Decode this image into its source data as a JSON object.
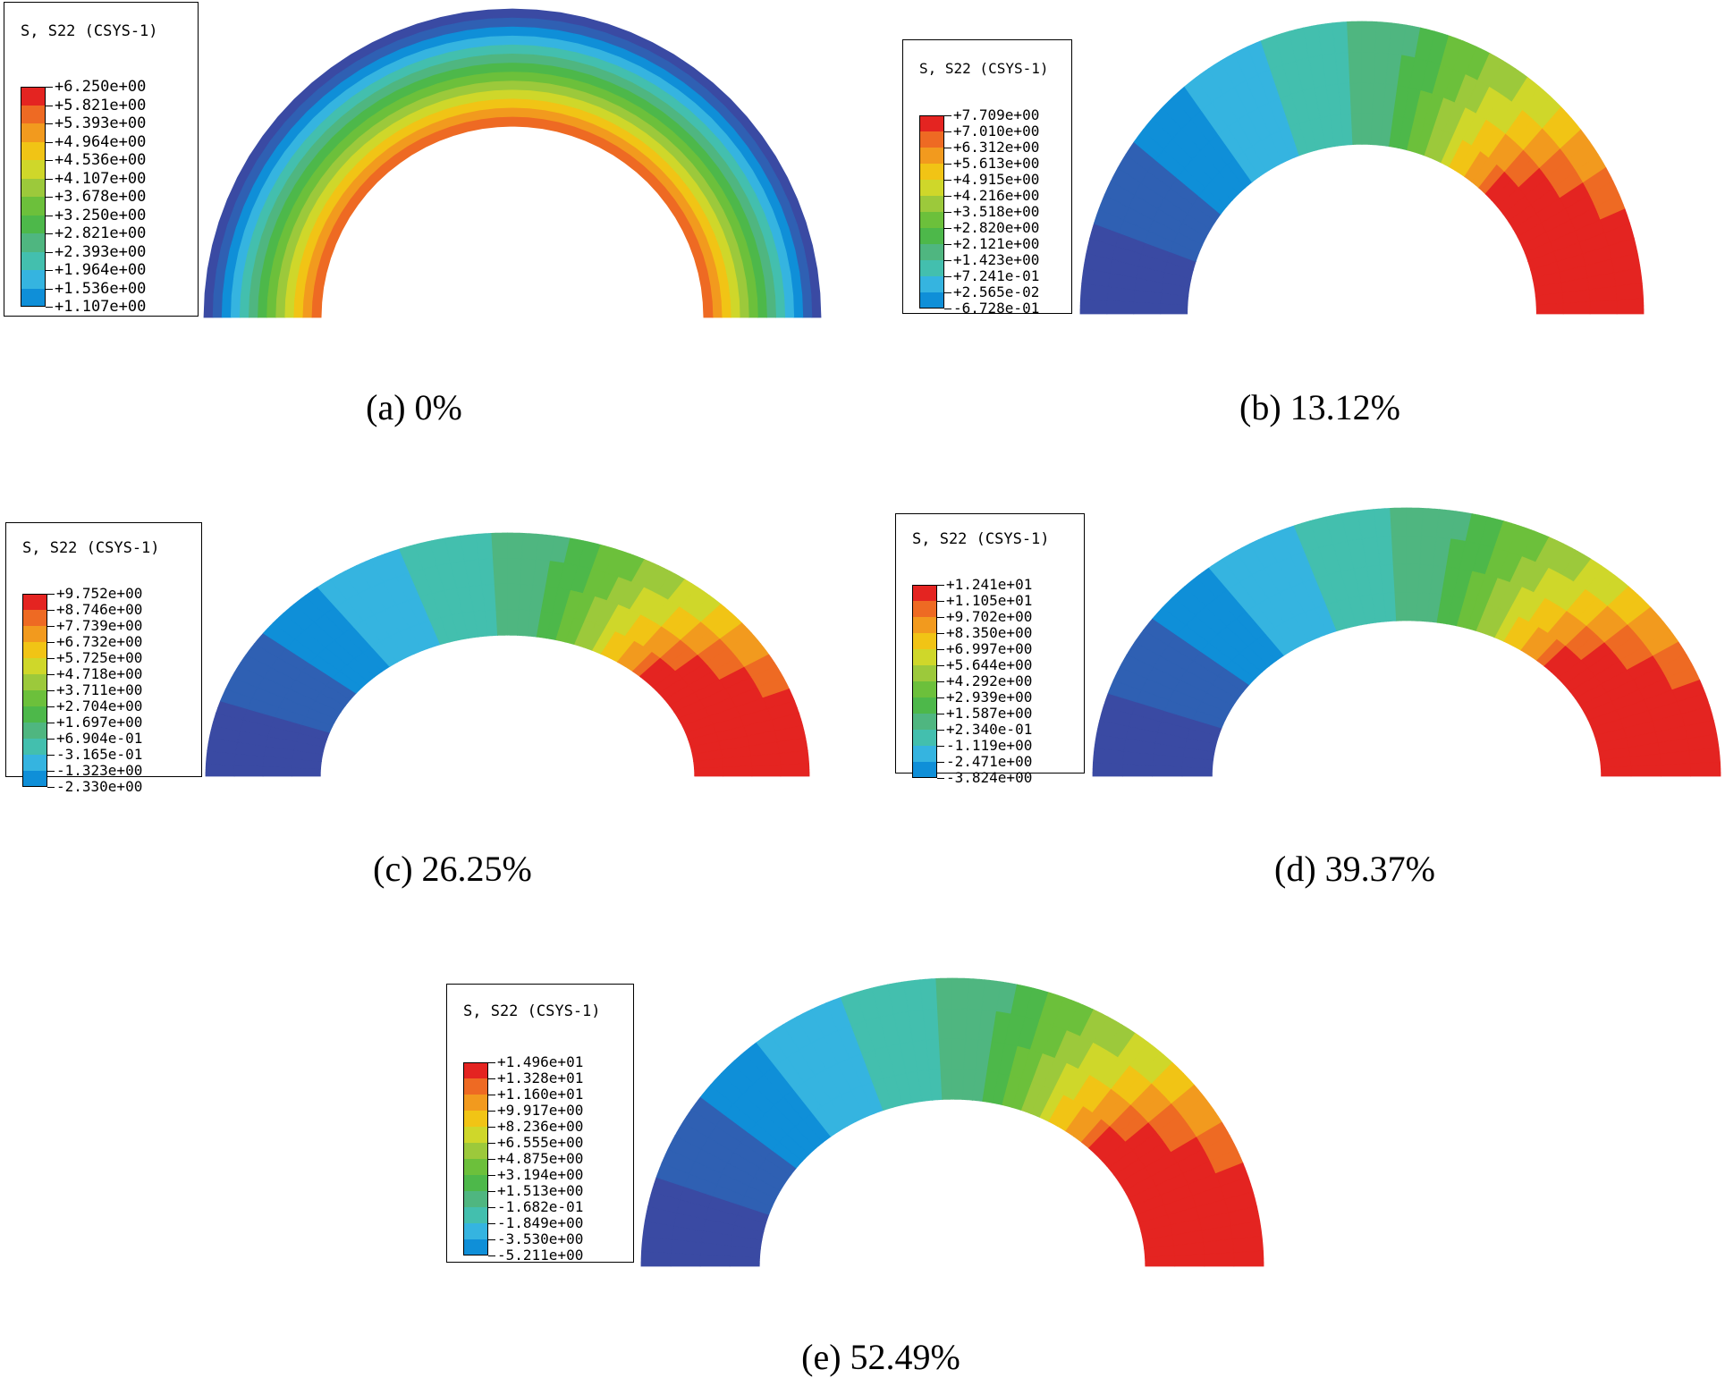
{
  "colors": [
    "#3a4aa3",
    "#2f60b3",
    "#0f8fd8",
    "#35b4e0",
    "#43bfae",
    "#4fb680",
    "#4db84a",
    "#6cc03b",
    "#9cc93b",
    "#cfd72a",
    "#f1c415",
    "#f29a1e",
    "#ee6a23",
    "#e42421"
  ],
  "panels": [
    {
      "id": "a",
      "legend_title": "S, S22 (CSYS-1)",
      "legend_values": [
        "+6.250e+00",
        "+5.821e+00",
        "+5.393e+00",
        "+4.964e+00",
        "+4.536e+00",
        "+4.107e+00",
        "+3.678e+00",
        "+3.250e+00",
        "+2.821e+00",
        "+2.393e+00",
        "+1.964e+00",
        "+1.536e+00",
        "+1.107e+00"
      ],
      "caption": "(a) 0%",
      "contour_mode": "concentric"
    },
    {
      "id": "b",
      "legend_title": "S, S22 (CSYS-1)",
      "legend_values": [
        "+7.709e+00",
        "+7.010e+00",
        "+6.312e+00",
        "+5.613e+00",
        "+4.915e+00",
        "+4.216e+00",
        "+3.518e+00",
        "+2.820e+00",
        "+2.121e+00",
        "+1.423e+00",
        "+7.241e-01",
        "+2.565e-02",
        "-6.728e-01"
      ],
      "caption": "(b) 13.12%",
      "contour_mode": "gradient"
    },
    {
      "id": "c",
      "legend_title": "S, S22 (CSYS-1)",
      "legend_values": [
        "+9.752e+00",
        "+8.746e+00",
        "+7.739e+00",
        "+6.732e+00",
        "+5.725e+00",
        "+4.718e+00",
        "+3.711e+00",
        "+2.704e+00",
        "+1.697e+00",
        "+6.904e-01",
        "-3.165e-01",
        "-1.323e+00",
        "-2.330e+00"
      ],
      "caption": "(c) 26.25%",
      "contour_mode": "gradient"
    },
    {
      "id": "d",
      "legend_title": "S, S22 (CSYS-1)",
      "legend_values": [
        "+1.241e+01",
        "+1.105e+01",
        "+9.702e+00",
        "+8.350e+00",
        "+6.997e+00",
        "+5.644e+00",
        "+4.292e+00",
        "+2.939e+00",
        "+1.587e+00",
        "+2.340e-01",
        "-1.119e+00",
        "-2.471e+00",
        "-3.824e+00"
      ],
      "caption": "(d) 39.37%",
      "contour_mode": "gradient"
    },
    {
      "id": "e",
      "legend_title": "S, S22 (CSYS-1)",
      "legend_values": [
        "+1.496e+01",
        "+1.328e+01",
        "+1.160e+01",
        "+9.917e+00",
        "+8.236e+00",
        "+6.555e+00",
        "+4.875e+00",
        "+3.194e+00",
        "+1.513e+00",
        "-1.682e-01",
        "-1.849e+00",
        "-3.530e+00",
        "-5.211e+00"
      ],
      "caption": "(e) 52.49%",
      "contour_mode": "gradient"
    }
  ]
}
